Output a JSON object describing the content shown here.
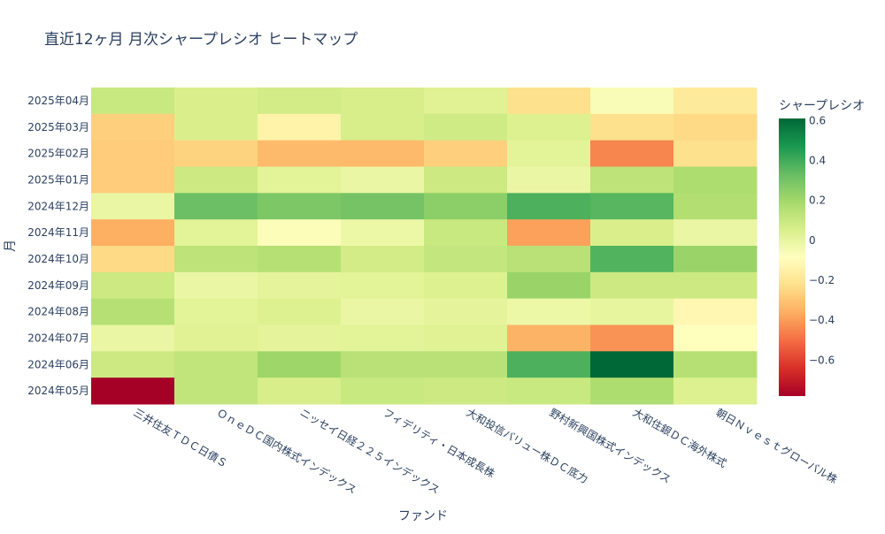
{
  "chart_data": {
    "type": "heatmap",
    "title": "直近12ヶ月 月次シャープレシオ ヒートマップ",
    "xlabel": "ファンド",
    "ylabel": "月",
    "colorbar_title": "シャープレシオ",
    "colorbar_ticks": [
      0.6,
      0.4,
      0.2,
      0,
      -0.2,
      -0.4,
      -0.6
    ],
    "colorbar_tick_labels": [
      "0.6",
      "0.4",
      "0.2",
      "0",
      "−0.2",
      "−0.4",
      "−0.6"
    ],
    "zmin": -0.78,
    "zmax": 0.61,
    "colorscale": [
      "#a50026",
      "#d73027",
      "#f46d43",
      "#fdae61",
      "#fee08b",
      "#ffffbf",
      "#d9ef8b",
      "#a6d96a",
      "#66bd63",
      "#1a9850",
      "#006837"
    ],
    "x": [
      "三井住友ＴＤＣ日債Ｓ",
      "ＯｎｅＤＣ国内株式インデックス",
      "ニッセイ日経２２５インデックス",
      "フィデリティ・日本成長株",
      "大和投信バリュー株ＤＣ底力",
      "野村新興国株式インデックス",
      "大和住銀ＤＣ海外株式",
      "朝日Ｎｖｅｓｔグローバル株"
    ],
    "y": [
      "2025年04月",
      "2025年03月",
      "2025年02月",
      "2025年01月",
      "2024年12月",
      "2024年11月",
      "2024年10月",
      "2024年09月",
      "2024年08月",
      "2024年07月",
      "2024年06月",
      "2024年05月"
    ],
    "z": [
      [
        0.1,
        0.05,
        0.07,
        0.06,
        0.03,
        -0.22,
        -0.06,
        -0.18
      ],
      [
        -0.27,
        0.05,
        -0.14,
        0.06,
        0.08,
        0.04,
        -0.22,
        -0.24
      ],
      [
        -0.28,
        -0.26,
        -0.33,
        -0.33,
        -0.27,
        0.02,
        -0.45,
        -0.22
      ],
      [
        -0.28,
        0.09,
        0.02,
        -0.01,
        0.09,
        -0.01,
        0.13,
        0.17
      ],
      [
        -0.01,
        0.32,
        0.28,
        0.3,
        0.25,
        0.38,
        0.36,
        0.16
      ],
      [
        -0.36,
        0.02,
        -0.07,
        -0.02,
        0.1,
        -0.39,
        0.05,
        -0.01
      ],
      [
        -0.24,
        0.13,
        0.15,
        0.07,
        0.11,
        0.14,
        0.37,
        0.22
      ],
      [
        0.09,
        -0.01,
        0.01,
        0.02,
        0.04,
        0.22,
        0.09,
        0.09
      ],
      [
        0.15,
        0.02,
        0.04,
        -0.01,
        0.01,
        -0.02,
        0.0,
        -0.12
      ],
      [
        -0.01,
        0.03,
        0.01,
        0.02,
        0.03,
        -0.35,
        -0.42,
        -0.08
      ],
      [
        0.09,
        0.12,
        0.21,
        0.14,
        0.14,
        0.38,
        0.61,
        0.15
      ],
      [
        -0.78,
        0.12,
        0.06,
        0.1,
        0.09,
        0.1,
        0.17,
        0.04
      ]
    ]
  }
}
